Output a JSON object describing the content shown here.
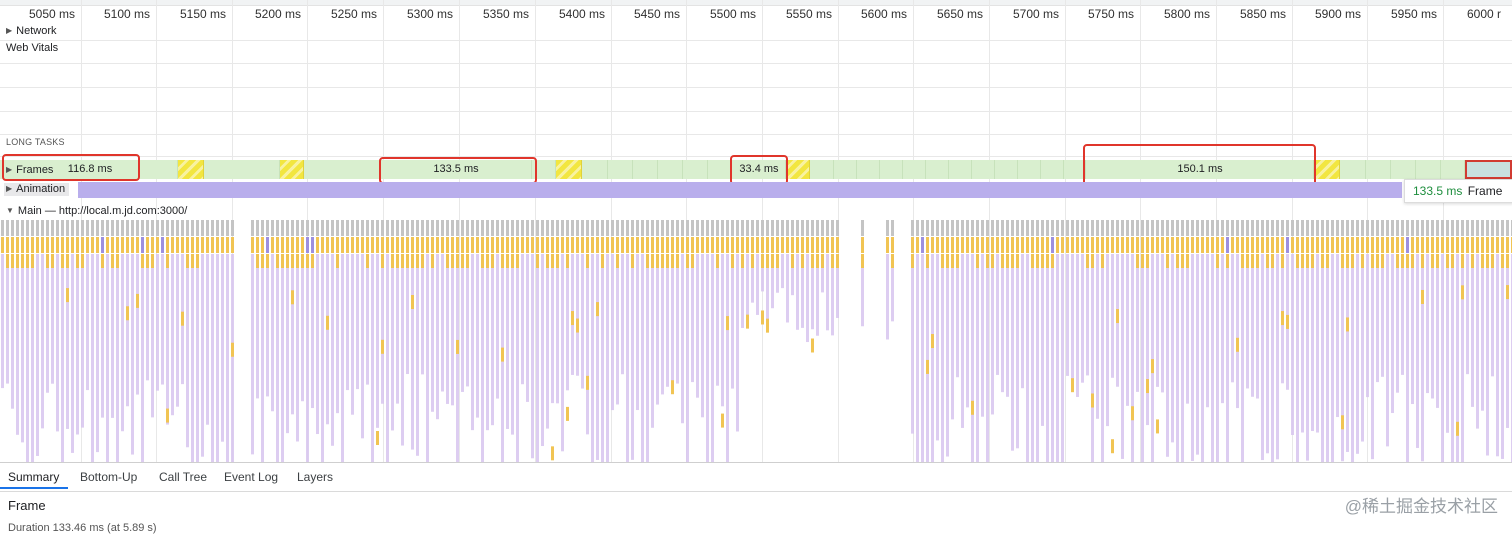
{
  "ruler": {
    "ticks": [
      "5050 ms",
      "5100 ms",
      "5150 ms",
      "5200 ms",
      "5250 ms",
      "5300 ms",
      "5350 ms",
      "5400 ms",
      "5450 ms",
      "5500 ms",
      "5550 ms",
      "5600 ms",
      "5650 ms",
      "5700 ms",
      "5750 ms",
      "5800 ms",
      "5850 ms",
      "5900 ms",
      "5950 ms",
      "6000 r"
    ]
  },
  "tracks": {
    "network": "Network",
    "web_vitals": "Web Vitals",
    "long_tasks": "LONG TASKS",
    "frames": "Frames",
    "animation": "Animation",
    "main": "Main — http://local.m.jd.com:3000/"
  },
  "frames": {
    "labels": {
      "f1": "116.8 ms",
      "f2": "133.5 ms",
      "f3": "33.4 ms",
      "f4": "150.1 ms"
    },
    "tooltip": {
      "duration": "133.5 ms",
      "label": "Frame",
      "duration_color": "#1e8e3e"
    }
  },
  "colors": {
    "frame_ok": "#d9efcf",
    "frame_dropped": "#f2e640",
    "animation": "#b9aeec",
    "highlight": "#e0352b",
    "flame_gray": "#c4c4c4",
    "flame_yellow": "#f1c453",
    "flame_purple": "#d7c4ee",
    "flame_lavender": "#9d8fe0"
  },
  "bottom_tabs": [
    "Summary",
    "Bottom-Up",
    "Call Tree",
    "Event Log",
    "Layers"
  ],
  "summary": {
    "title": "Frame",
    "duration": "Duration    133.46 ms (at 5.89 s)"
  },
  "watermark": "@稀土掘金技术社区"
}
